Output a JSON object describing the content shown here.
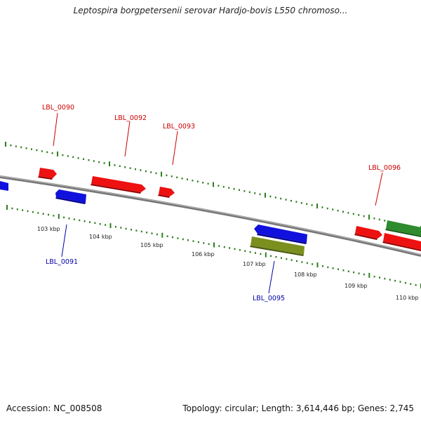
{
  "title": "Leptospira borgpetersenii serovar Hardjo-bovis L550 chromoso...",
  "footer": {
    "accession": "Accession: NC_008508",
    "topology": "Topology: circular; Length: 3,614,446 bp; Genes: 2,745"
  },
  "colors": {
    "forward_gene": "#ee1111",
    "reverse_gene": "#1111dd",
    "other_gene_green": "#2e8b2e",
    "other_gene_olive": "#7a8f1e",
    "forward_label": "#cc0000",
    "reverse_label": "#0000aa",
    "ticks": "#2e7d1e",
    "backbone": "#888888"
  },
  "kbp_labels": [
    "103 kbp",
    "104 kbp",
    "105 kbp",
    "106 kbp",
    "107 kbp",
    "108 kbp",
    "109 kbp",
    "110 kbp"
  ],
  "gene_labels": [
    {
      "text": "LBL_0090",
      "strand": "forward"
    },
    {
      "text": "LBL_0092",
      "strand": "forward"
    },
    {
      "text": "LBL_0093",
      "strand": "forward"
    },
    {
      "text": "LBL_0096",
      "strand": "forward"
    },
    {
      "text": "LBL_0091",
      "strand": "reverse"
    },
    {
      "text": "LBL_0095",
      "strand": "reverse"
    }
  ]
}
